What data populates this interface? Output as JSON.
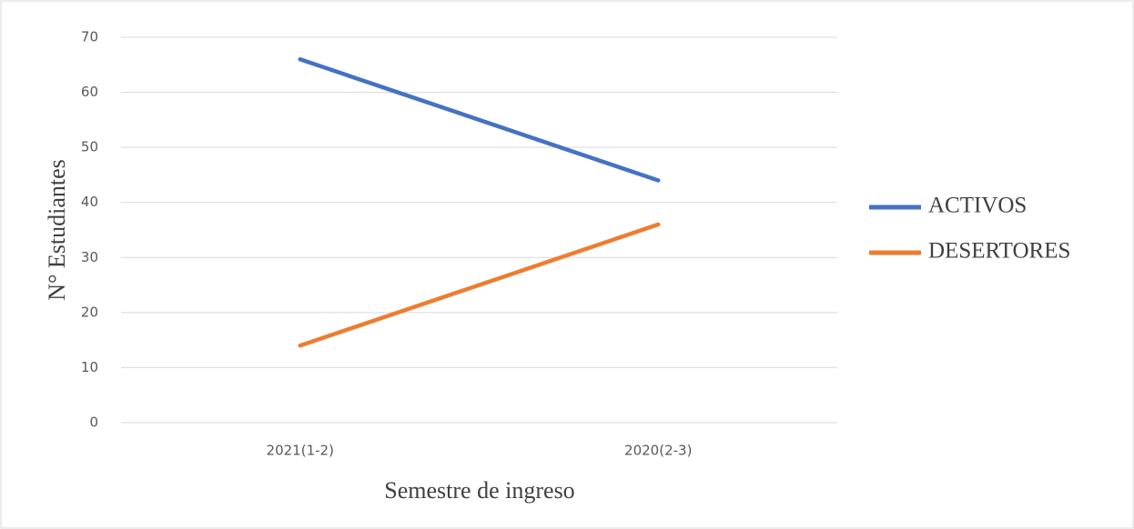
{
  "chart_data": {
    "type": "line",
    "xlabel": "Semestre de ingreso",
    "ylabel": "N° Estudiantes",
    "categories": [
      "2021(1-2)",
      "2020(2-3)"
    ],
    "series": [
      {
        "name": "ACTIVOS",
        "color": "#4472c4",
        "values": [
          66,
          44
        ]
      },
      {
        "name": "DESERTORES",
        "color": "#ed7d31",
        "values": [
          14,
          36
        ]
      }
    ],
    "ylim": [
      0,
      70
    ],
    "yticks": [
      0,
      10,
      20,
      30,
      40,
      50,
      60,
      70
    ],
    "grid": true,
    "legend": "right"
  }
}
